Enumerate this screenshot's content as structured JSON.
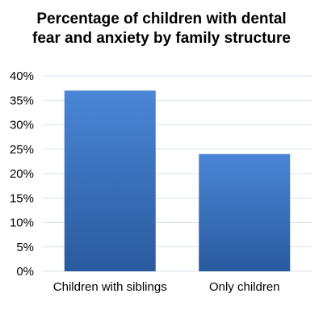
{
  "chart_data": {
    "type": "bar",
    "title_lines": [
      "Percentage of children with dental",
      "fear and anxiety by family structure"
    ],
    "categories": [
      "Children with siblings",
      "Only children"
    ],
    "values": [
      37,
      24
    ],
    "ylim": [
      0,
      40
    ],
    "yticks": [
      0,
      5,
      10,
      15,
      20,
      25,
      30,
      35,
      40
    ],
    "ytick_labels": [
      "0%",
      "5%",
      "10%",
      "15%",
      "20%",
      "25%",
      "30%",
      "35%",
      "40%"
    ],
    "grid": true,
    "bar_color_top": "#4a86d6",
    "bar_color_bottom": "#2a5a9e",
    "grid_color": "#d9e3ec"
  }
}
